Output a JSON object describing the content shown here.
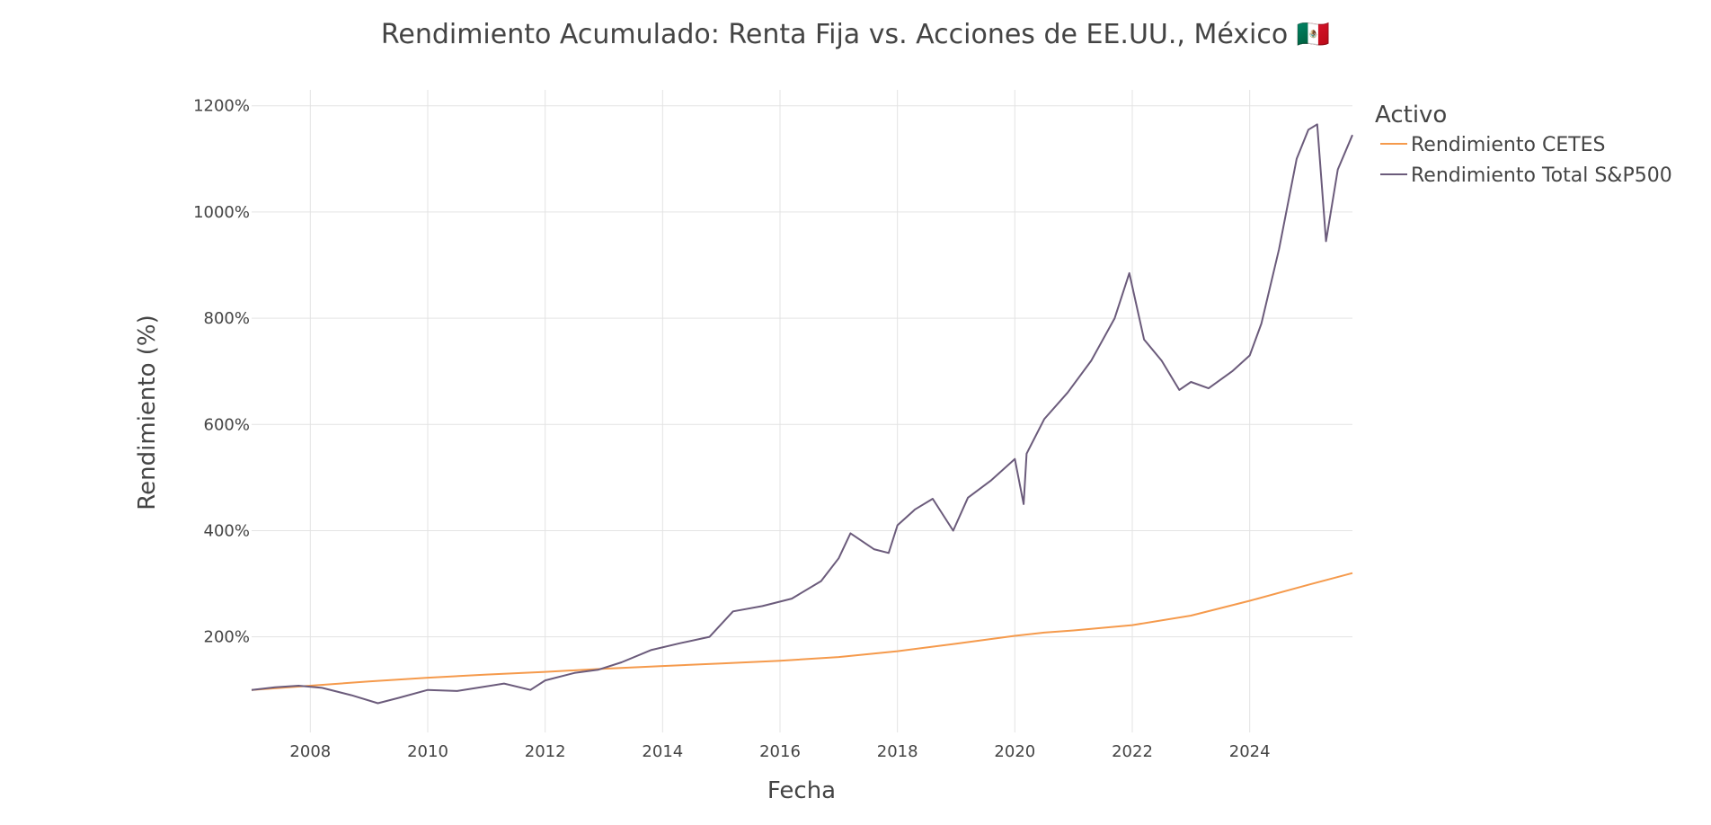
{
  "chart_data": {
    "type": "line",
    "title": "Rendimiento Acumulado: Renta Fija vs. Acciones de EE.UU., México 🇲🇽",
    "xlabel": "Fecha",
    "ylabel": "Rendimiento (%)",
    "xlim": [
      2007.0,
      2025.75
    ],
    "ylim": [
      20,
      1230
    ],
    "x_ticks": [
      2008,
      2010,
      2012,
      2014,
      2016,
      2018,
      2020,
      2022,
      2024
    ],
    "x_tick_labels": [
      "2008",
      "2010",
      "2012",
      "2014",
      "2016",
      "2018",
      "2020",
      "2022",
      "2024"
    ],
    "y_ticks": [
      200,
      400,
      600,
      800,
      1000,
      1200
    ],
    "y_tick_labels": [
      "200%",
      "400%",
      "600%",
      "800%",
      "1000%",
      "1200%"
    ],
    "grid": true,
    "legend": {
      "title": "Activo",
      "position": "top-right-outside"
    },
    "series": [
      {
        "name": "Rendimiento CETES",
        "color": "#F59A4C",
        "x": [
          2007.0,
          2008.0,
          2009.0,
          2010.0,
          2011.0,
          2012.0,
          2013.0,
          2014.0,
          2015.0,
          2016.0,
          2017.0,
          2018.0,
          2019.0,
          2020.0,
          2020.5,
          2021.0,
          2022.0,
          2023.0,
          2024.0,
          2025.0,
          2025.75
        ],
        "y": [
          100,
          108,
          116,
          123,
          129,
          134,
          140,
          145,
          150,
          155,
          162,
          173,
          187,
          202,
          208,
          212,
          222,
          240,
          268,
          298,
          320
        ]
      },
      {
        "name": "Rendimiento Total S&P500",
        "color": "#6B5B7B",
        "x": [
          2007.0,
          2007.4,
          2007.8,
          2008.2,
          2008.7,
          2009.15,
          2009.5,
          2010.0,
          2010.5,
          2010.9,
          2011.3,
          2011.75,
          2012.0,
          2012.5,
          2012.9,
          2013.3,
          2013.8,
          2014.3,
          2014.8,
          2015.2,
          2015.7,
          2016.2,
          2016.7,
          2017.0,
          2017.2,
          2017.6,
          2017.85,
          2018.0,
          2018.3,
          2018.6,
          2018.95,
          2019.2,
          2019.6,
          2020.0,
          2020.15,
          2020.2,
          2020.5,
          2020.9,
          2021.3,
          2021.7,
          2021.95,
          2022.2,
          2022.5,
          2022.8,
          2023.0,
          2023.3,
          2023.7,
          2024.0,
          2024.2,
          2024.5,
          2024.8,
          2025.0,
          2025.15,
          2025.3,
          2025.5,
          2025.75
        ],
        "y": [
          100,
          105,
          108,
          104,
          90,
          75,
          85,
          100,
          98,
          105,
          112,
          100,
          118,
          132,
          138,
          152,
          175,
          188,
          200,
          248,
          258,
          272,
          305,
          348,
          395,
          365,
          358,
          410,
          440,
          460,
          400,
          462,
          495,
          535,
          450,
          545,
          610,
          660,
          720,
          800,
          885,
          760,
          720,
          665,
          680,
          668,
          700,
          730,
          790,
          930,
          1100,
          1155,
          1165,
          945,
          1080,
          1145
        ]
      }
    ]
  }
}
